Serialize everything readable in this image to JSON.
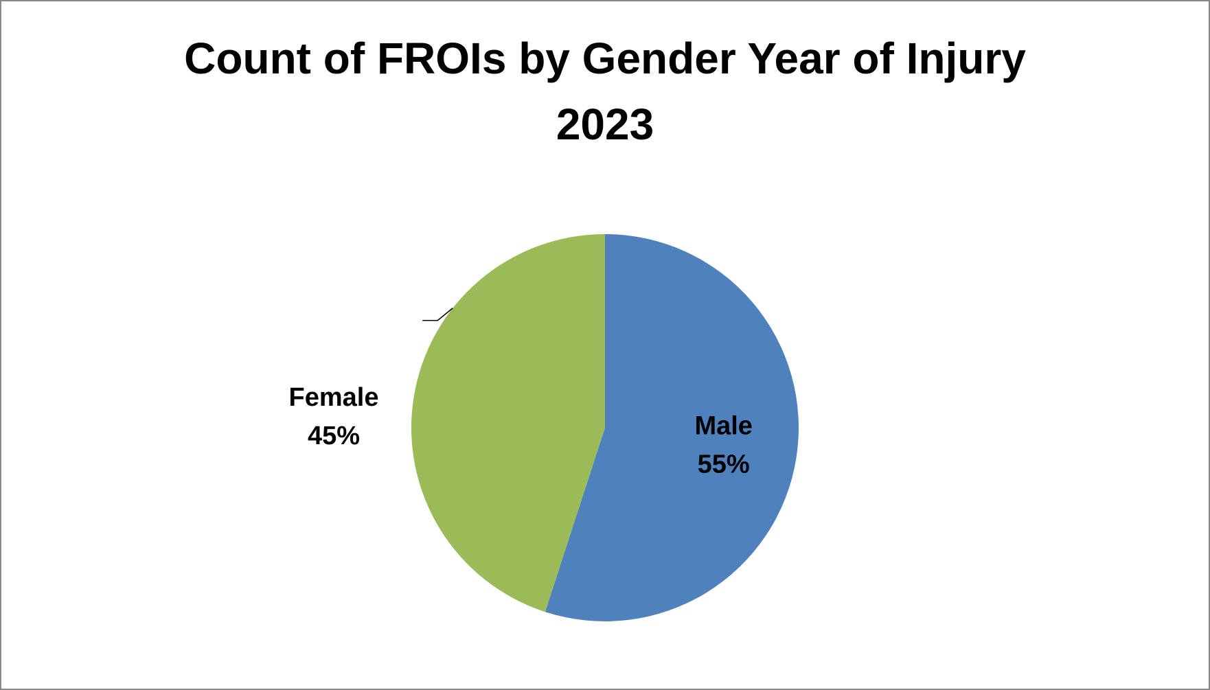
{
  "chart_data": {
    "type": "pie",
    "title": "Count of FROIs by Gender Year of Injury 2023",
    "categories": [
      "Male",
      "Female"
    ],
    "values": [
      55,
      45
    ],
    "value_labels": [
      "55%",
      "45%"
    ],
    "colors": [
      "#4f81bd",
      "#9bbb59"
    ]
  }
}
